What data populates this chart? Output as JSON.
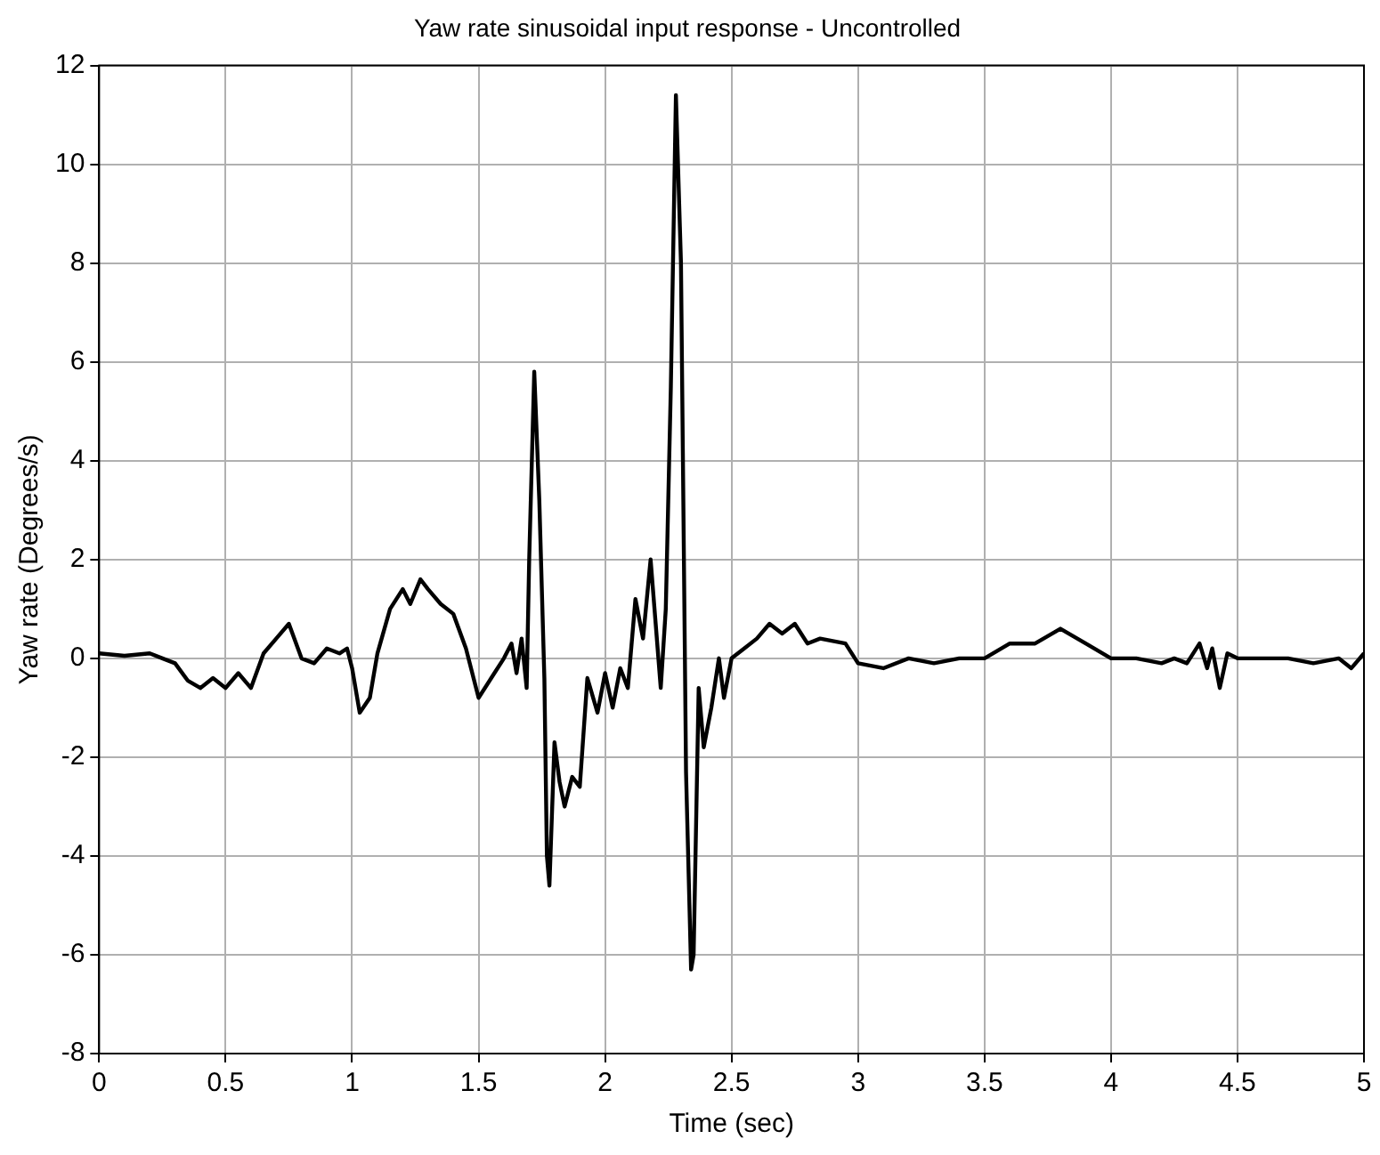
{
  "chart_data": {
    "type": "line",
    "title": "Yaw rate sinusoidal input response - Uncontrolled",
    "xlabel": "Time (sec)",
    "ylabel": "Yaw rate (Degrees/s)",
    "x": [
      0,
      0.1,
      0.2,
      0.25,
      0.3,
      0.35,
      0.4,
      0.45,
      0.5,
      0.55,
      0.6,
      0.65,
      0.7,
      0.75,
      0.8,
      0.85,
      0.9,
      0.95,
      0.98,
      1.0,
      1.03,
      1.07,
      1.1,
      1.15,
      1.2,
      1.23,
      1.27,
      1.3,
      1.35,
      1.4,
      1.45,
      1.5,
      1.55,
      1.6,
      1.63,
      1.65,
      1.67,
      1.69,
      1.7,
      1.72,
      1.74,
      1.76,
      1.77,
      1.78,
      1.8,
      1.82,
      1.84,
      1.87,
      1.9,
      1.93,
      1.97,
      2.0,
      2.03,
      2.06,
      2.09,
      2.12,
      2.15,
      2.18,
      2.2,
      2.22,
      2.24,
      2.26,
      2.28,
      2.3,
      2.32,
      2.34,
      2.35,
      2.37,
      2.39,
      2.42,
      2.45,
      2.47,
      2.5,
      2.55,
      2.6,
      2.65,
      2.7,
      2.75,
      2.8,
      2.85,
      2.95,
      3.0,
      3.1,
      3.2,
      3.3,
      3.4,
      3.5,
      3.6,
      3.7,
      3.8,
      3.9,
      4.0,
      4.1,
      4.2,
      4.25,
      4.3,
      4.35,
      4.38,
      4.4,
      4.43,
      4.46,
      4.5,
      4.6,
      4.7,
      4.8,
      4.9,
      4.95,
      5.0
    ],
    "series": [
      {
        "color": "#000000",
        "values": [
          0.1,
          0.05,
          0.1,
          0.0,
          -0.1,
          -0.45,
          -0.6,
          -0.4,
          -0.6,
          -0.3,
          -0.6,
          0.1,
          0.4,
          0.7,
          0.0,
          -0.1,
          0.2,
          0.1,
          0.2,
          -0.2,
          -1.1,
          -0.8,
          0.1,
          1.0,
          1.4,
          1.1,
          1.6,
          1.4,
          1.1,
          0.9,
          0.2,
          -0.8,
          -0.4,
          0.0,
          0.3,
          -0.3,
          0.4,
          -0.6,
          2.0,
          5.8,
          3.2,
          -0.4,
          -4.0,
          -4.6,
          -1.7,
          -2.5,
          -3.0,
          -2.4,
          -2.6,
          -0.4,
          -1.1,
          -0.3,
          -1.0,
          -0.2,
          -0.6,
          1.2,
          0.4,
          2.0,
          0.7,
          -0.6,
          1.0,
          5.5,
          11.4,
          8.0,
          -2.3,
          -6.3,
          -6.0,
          -0.6,
          -1.8,
          -1.0,
          0.0,
          -0.8,
          0.0,
          0.2,
          0.4,
          0.7,
          0.5,
          0.7,
          0.3,
          0.4,
          0.3,
          -0.1,
          -0.2,
          0.0,
          -0.1,
          0.0,
          0.0,
          0.3,
          0.3,
          0.6,
          0.3,
          0.0,
          0.0,
          -0.1,
          0.0,
          -0.1,
          0.3,
          -0.2,
          0.2,
          -0.6,
          0.1,
          0.0,
          0.0,
          0.0,
          -0.1,
          0.0,
          -0.2,
          0.1
        ]
      }
    ],
    "xlim": [
      0,
      5
    ],
    "xticks": [
      0,
      0.5,
      1,
      1.5,
      2,
      2.5,
      3,
      3.5,
      4,
      4.5,
      5
    ],
    "ylim": [
      -8,
      12
    ],
    "yticks": [
      -8,
      -6,
      -4,
      -2,
      0,
      2,
      4,
      6,
      8,
      10,
      12
    ],
    "grid": true,
    "legend": false,
    "marker": "none",
    "line_style": "solid"
  }
}
